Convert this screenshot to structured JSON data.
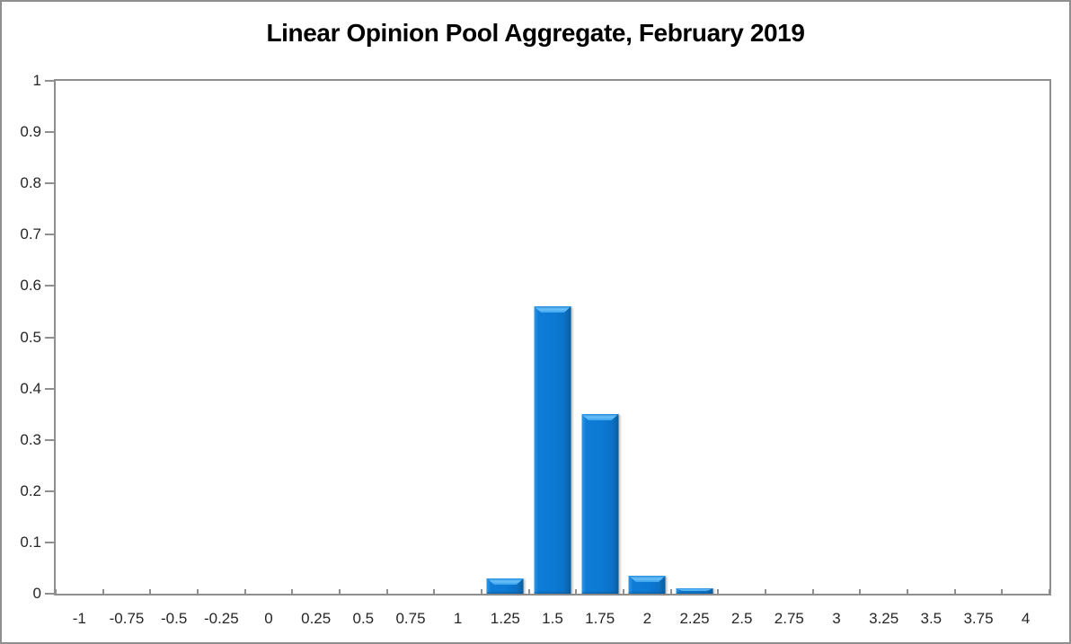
{
  "chart_data": {
    "type": "bar",
    "title": "Linear Opinion Pool Aggregate, February 2019",
    "xlabel": "",
    "ylabel": "",
    "categories": [
      "-1",
      "-0.75",
      "-0.5",
      "-0.25",
      "0",
      "0.25",
      "0.5",
      "0.75",
      "1",
      "1.25",
      "1.5",
      "1.75",
      "2",
      "2.25",
      "2.5",
      "2.75",
      "3",
      "3.25",
      "3.5",
      "3.75",
      "4"
    ],
    "values": [
      0,
      0,
      0,
      0,
      0,
      0,
      0,
      0,
      0,
      0.03,
      0.56,
      0.35,
      0.035,
      0.01,
      0,
      0,
      0,
      0,
      0,
      0,
      0
    ],
    "ylim": [
      0,
      1
    ],
    "y_ticks": [
      0,
      0.1,
      0.2,
      0.3,
      0.4,
      0.5,
      0.6,
      0.7,
      0.8,
      0.9,
      1
    ],
    "y_tick_labels": [
      "0",
      "0.1",
      "0.2",
      "0.3",
      "0.4",
      "0.5",
      "0.6",
      "0.7",
      "0.8",
      "0.9",
      "1"
    ],
    "grid": false,
    "legend": false,
    "tick_style": {
      "x": "inside",
      "y": "outside"
    },
    "colors": {
      "bar": "#0c79d3",
      "bar_highlight": "#6abff7",
      "bar_edge_dark": "#085a97",
      "axis": "#8f8f8f",
      "labels": "#262626",
      "title": "#000000",
      "background": "#ffffff"
    }
  }
}
